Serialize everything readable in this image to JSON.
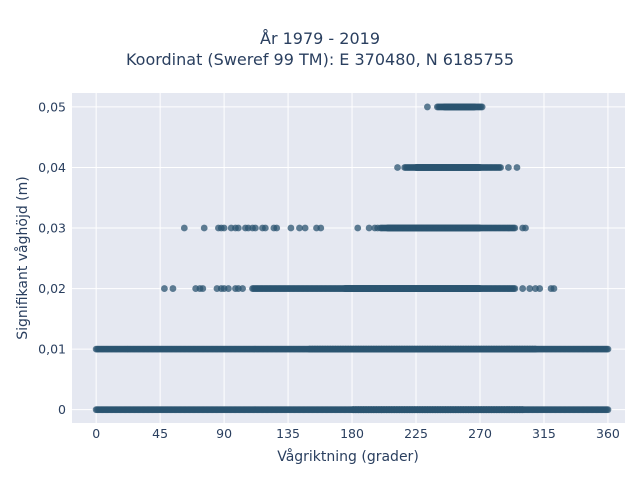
{
  "chart_data": {
    "type": "scatter",
    "title": "År 1979 - 2019",
    "subtitle": "Koordinat (Sweref 99 TM): E 370480, N 6185755",
    "xlabel": "Vågriktning (grader)",
    "ylabel": "Signifikant våghöjd (m)",
    "xlim": [
      -17,
      372
    ],
    "ylim": [
      -0.0022,
      0.0523
    ],
    "xticks": [
      0,
      45,
      90,
      135,
      180,
      225,
      270,
      315,
      360
    ],
    "yticks": [
      0,
      0.01,
      0.02,
      0.03,
      0.04,
      0.05
    ],
    "ytick_labels": [
      "0",
      "0,01",
      "0,02",
      "0,03",
      "0,04",
      "0,05"
    ],
    "grid": true,
    "colors": {
      "marker": "#2b5470",
      "plot_bg": "#e5e8f1",
      "grid": "#ffffff",
      "text": "#2a3f5f"
    },
    "levels": [
      {
        "y": 0,
        "x_min": 0,
        "x_max": 360,
        "dense": [
          [
            0,
            360
          ],
          [
            180,
            300
          ]
        ],
        "isolated": []
      },
      {
        "y": 0.01,
        "x_min": 0,
        "x_max": 360,
        "dense": [
          [
            0,
            360
          ],
          [
            150,
            310
          ]
        ],
        "isolated": []
      },
      {
        "y": 0.02,
        "x_min": 48,
        "x_max": 322,
        "dense": [
          [
            110,
            295
          ],
          [
            175,
            270
          ]
        ],
        "isolated": [
          48,
          54,
          70,
          73,
          75,
          85,
          88,
          90,
          93,
          98,
          100,
          103,
          300,
          305,
          309,
          312,
          320,
          322
        ]
      },
      {
        "y": 0.03,
        "x_min": 62,
        "x_max": 302,
        "dense": [
          [
            200,
            295
          ],
          [
            205,
            270
          ]
        ],
        "isolated": [
          62,
          76,
          86,
          88,
          90,
          95,
          98,
          100,
          105,
          107,
          110,
          112,
          117,
          119,
          125,
          127,
          137,
          143,
          147,
          155,
          158,
          184,
          192,
          196,
          198,
          300,
          302
        ]
      },
      {
        "y": 0.04,
        "x_min": 212,
        "x_max": 296,
        "dense": [
          [
            217,
            285
          ],
          [
            225,
            270
          ]
        ],
        "isolated": [
          212,
          290,
          296
        ]
      },
      {
        "y": 0.05,
        "x_min": 233,
        "x_max": 272,
        "dense": [
          [
            240,
            272
          ],
          [
            245,
            266
          ]
        ],
        "isolated": [
          233
        ]
      }
    ]
  }
}
